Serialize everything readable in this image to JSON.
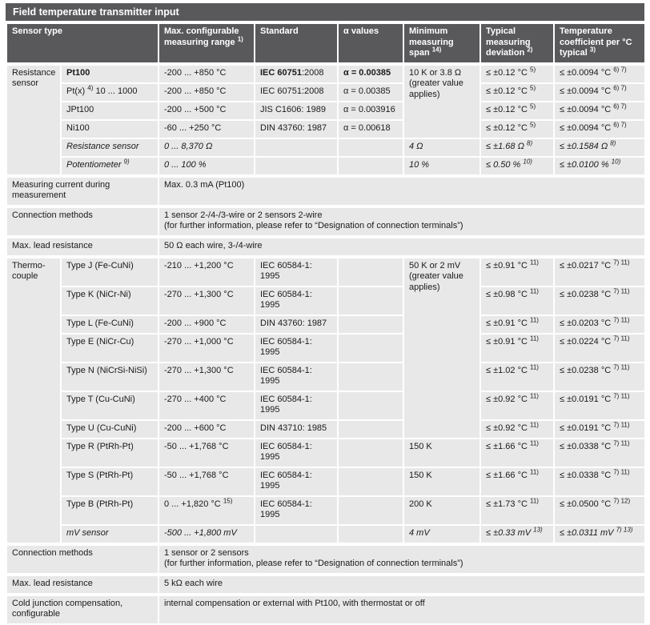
{
  "title": "Field temperature transmitter input",
  "colors": {
    "header_bg": "#59595c",
    "cell_bg": "#e8e8e9",
    "separator": "#ffffff",
    "text": "#1a1a1a",
    "header_text": "#ffffff"
  },
  "header": {
    "sensor_type": "Sensor type",
    "range": "Max. configurable measuring range |1)",
    "standard": "Standard",
    "alpha": "α values",
    "span": "Minimum measuring span |14)",
    "deviation": "Typical measuring deviation |2)",
    "coefficient": "Temperature coefficient per °C typical |3)"
  },
  "sections": [
    {
      "type": "group",
      "group": "Resistance sensor",
      "shared_span": {
        "text": "10 K or 3.8 Ω (greater value applies)",
        "rows": 4
      },
      "rows": [
        {
          "name": "~Pt100~",
          "range": "-200 ... +850 °C",
          "standard": "~IEC 60751~:2008",
          "alpha": "~α = 0.00385~",
          "deviation": "≤ ±0.12 °C |5)",
          "coeff": "≤ ±0.0094 °C |6) 7)"
        },
        {
          "name": "Pt(x) |4)| 10 ... 1000",
          "range": "-200 ... +850 °C",
          "standard": "IEC 60751:2008",
          "alpha": "α = 0.00385",
          "deviation": "≤ ±0.12 °C |5)",
          "coeff": "≤ ±0.0094 °C |6) 7)"
        },
        {
          "name": "JPt100",
          "range": "-200 ... +500 °C",
          "standard": "JIS C1606: 1989",
          "alpha": "α = 0.003916",
          "deviation": "≤ ±0.12 °C |5)",
          "coeff": "≤ ±0.0094 °C |6) 7)"
        },
        {
          "name": "Ni100",
          "range": "-60 ... +250 °C",
          "standard": "DIN 43760: 1987",
          "alpha": "α = 0.00618",
          "deviation": "≤ ±0.12 °C |5)",
          "coeff": "≤ ±0.0094 °C |6) 7)"
        },
        {
          "italic": true,
          "name": "Resistance sensor",
          "range": "0 ... 8,370 Ω",
          "standard": "",
          "alpha": "",
          "span": "4 Ω",
          "deviation": "≤ ±1.68 Ω |8)",
          "coeff": "≤ ±0.1584 Ω |8)"
        },
        {
          "italic": true,
          "name": "Potentiometer |9)",
          "range": "0 ... 100 %",
          "standard": "",
          "alpha": "",
          "span": "10 %",
          "deviation": "≤ 0.50 % |10)",
          "coeff": "≤ ±0.0100 % |10)"
        }
      ]
    },
    {
      "type": "info",
      "label": "Measuring current during measurement",
      "value_lines": [
        "Max. 0.3 mA (Pt100)"
      ]
    },
    {
      "type": "info",
      "label": "Connection methods",
      "value_lines": [
        "1 sensor 2-/4-/3-wire or 2 sensors 2-wire",
        "(for further information, please refer to “Designation of connection terminals”)"
      ]
    },
    {
      "type": "info",
      "label": "Max. lead resistance",
      "value_lines": [
        "50 Ω each wire, 3-/4-wire"
      ]
    },
    {
      "type": "group",
      "group": "Thermo-couple",
      "shared_span": {
        "text": "50 K or 2 mV (greater value applies)",
        "rows": 7
      },
      "rows": [
        {
          "name": "Type J (Fe-CuNi)",
          "range": "-210 ... +1,200 °C",
          "standard": "IEC 60584-1: 1995",
          "alpha": "",
          "deviation": "≤ ±0.91 °C |11)",
          "coeff": "≤ ±0.0217 °C |7) 11)"
        },
        {
          "name": "Type K (NiCr-Ni)",
          "range": "-270 ... +1,300 °C",
          "standard": "IEC 60584-1: 1995",
          "alpha": "",
          "deviation": "≤ ±0.98 °C |11)",
          "coeff": "≤ ±0.0238 °C |7) 11)"
        },
        {
          "name": "Type L (Fe-CuNi)",
          "range": "-200 ... +900 °C",
          "standard": "DIN 43760: 1987",
          "alpha": "",
          "deviation": "≤ ±0.91 °C |11)",
          "coeff": "≤ ±0.0203 °C |7) 11)"
        },
        {
          "name": "Type E (NiCr-Cu)",
          "range": "-270 ... +1,000 °C",
          "standard": "IEC 60584-1: 1995",
          "alpha": "",
          "deviation": "≤ ±0.91 °C |11)",
          "coeff": "≤ ±0.0224 °C |7) 11)"
        },
        {
          "name": "Type N (NiCrSi-NiSi)",
          "range": "-270 ... +1,300 °C",
          "standard": "IEC 60584-1: 1995",
          "alpha": "",
          "deviation": "≤ ±1.02 °C |11)",
          "coeff": "≤ ±0.0238 °C |7) 11)"
        },
        {
          "name": "Type T (Cu-CuNi)",
          "range": "-270 ... +400 °C",
          "standard": "IEC 60584-1: 1995",
          "alpha": "",
          "deviation": "≤ ±0.92 °C |11)",
          "coeff": "≤ ±0.0191 °C |7) 11)"
        },
        {
          "name": "Type U (Cu-CuNi)",
          "range": "-200 ... +600 °C",
          "standard": "DIN 43710: 1985",
          "alpha": "",
          "deviation": "≤ ±0.92 °C |11)",
          "coeff": "≤ ±0.0191 °C |7) 11)"
        },
        {
          "name": "Type R (PtRh-Pt)",
          "range": "-50 ... +1,768 °C",
          "standard": "IEC 60584-1: 1995",
          "alpha": "",
          "span": "150 K",
          "deviation": "≤ ±1.66 °C |11)",
          "coeff": "≤ ±0.0338 °C |7) 11)"
        },
        {
          "name": "Type S (PtRh-Pt)",
          "range": "-50 ... +1,768 °C",
          "standard": "IEC 60584-1: 1995",
          "alpha": "",
          "span": "150 K",
          "deviation": "≤ ±1.66 °C |11)",
          "coeff": "≤ ±0.0338 °C |7) 11)"
        },
        {
          "name": "Type B (PtRh-Pt)",
          "range": "0 ... +1,820 °C |15)",
          "standard": "IEC 60584-1: 1995",
          "alpha": "",
          "span": "200 K",
          "deviation": "≤ ±1.73 °C |11)",
          "coeff": "≤ ±0.0500 °C |7) 12)"
        },
        {
          "italic": true,
          "name": "mV sensor",
          "range": "-500 ... +1,800 mV",
          "standard": "",
          "alpha": "",
          "span": "4 mV",
          "deviation": "≤ ±0.33 mV |13)",
          "coeff": "≤ ±0.0311 mV |7) 13)"
        }
      ]
    },
    {
      "type": "info",
      "label": "Connection methods",
      "value_lines": [
        "1 sensor or 2 sensors",
        "(for further information, please refer to “Designation of connection terminals”)"
      ]
    },
    {
      "type": "info",
      "label": "Max. lead resistance",
      "value_lines": [
        "5 kΩ each wire"
      ]
    },
    {
      "type": "info",
      "label": "Cold junction compensation, configurable",
      "value_lines": [
        "internal compensation or external with Pt100, with thermostat or off"
      ]
    }
  ]
}
